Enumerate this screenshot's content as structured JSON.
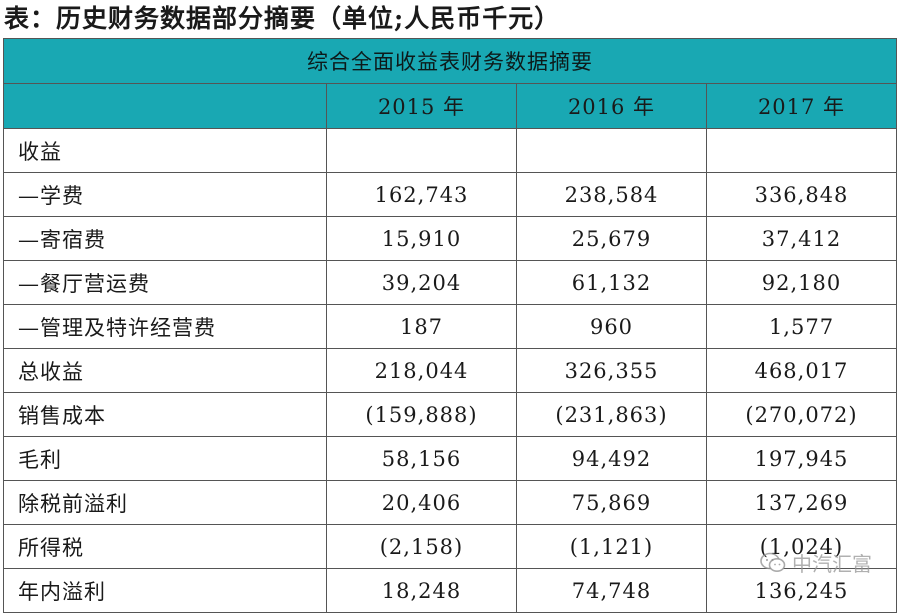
{
  "caption": "表：历史财务数据部分摘要（单位;人民币千元）",
  "table": {
    "title": "综合全面收益表财务数据摘要",
    "columns": [
      "2015 年",
      "2016 年",
      "2017 年"
    ],
    "rows": [
      {
        "label": "收益",
        "values": [
          "",
          "",
          ""
        ]
      },
      {
        "label": "—学费",
        "values": [
          "162,743",
          "238,584",
          "336,848"
        ]
      },
      {
        "label": "—寄宿费",
        "values": [
          "15,910",
          "25,679",
          "37,412"
        ]
      },
      {
        "label": "—餐厅营运费",
        "values": [
          "39,204",
          "61,132",
          "92,180"
        ]
      },
      {
        "label": "—管理及特许经营费",
        "values": [
          "187",
          "960",
          "1,577"
        ]
      },
      {
        "label": "总收益",
        "values": [
          "218,044",
          "326,355",
          "468,017"
        ]
      },
      {
        "label": "销售成本",
        "values": [
          "(159,888)",
          "(231,863)",
          "(270,072)"
        ]
      },
      {
        "label": "毛利",
        "values": [
          "58,156",
          "94,492",
          "197,945"
        ]
      },
      {
        "label": "除税前溢利",
        "values": [
          "20,406",
          "75,869",
          "137,269"
        ]
      },
      {
        "label": "所得税",
        "values": [
          "(2,158)",
          "(1,121)",
          "(1,024)"
        ]
      },
      {
        "label": "年内溢利",
        "values": [
          "18,248",
          "74,748",
          "136,245"
        ]
      }
    ]
  },
  "watermark": {
    "text": "中汽汇富",
    "icon": "wechat-icon"
  }
}
